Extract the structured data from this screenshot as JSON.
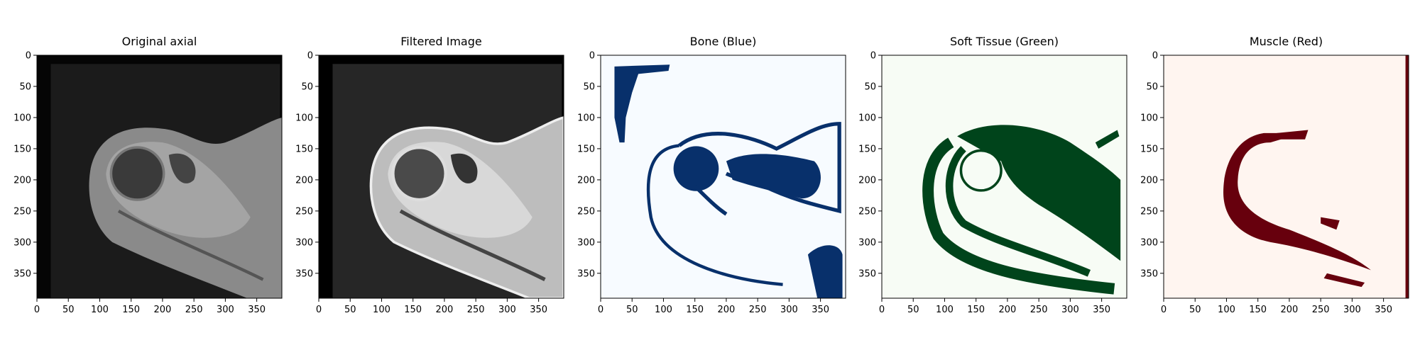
{
  "chart_data": [
    {
      "type": "image",
      "title": "Original axial",
      "xlim": [
        0,
        390
      ],
      "ylim": [
        390,
        0
      ],
      "xticks": [
        0,
        50,
        100,
        150,
        200,
        250,
        300,
        350
      ],
      "yticks": [
        0,
        50,
        100,
        150,
        200,
        250,
        300,
        350
      ]
    },
    {
      "type": "image",
      "title": "Filtered Image",
      "xlim": [
        0,
        390
      ],
      "ylim": [
        390,
        0
      ],
      "xticks": [
        0,
        50,
        100,
        150,
        200,
        250,
        300,
        350
      ],
      "yticks": [
        0,
        50,
        100,
        150,
        200,
        250,
        300,
        350
      ]
    },
    {
      "type": "image",
      "title": "Bone (Blue)",
      "xlim": [
        0,
        390
      ],
      "ylim": [
        390,
        0
      ],
      "xticks": [
        0,
        50,
        100,
        150,
        200,
        250,
        300,
        350
      ],
      "yticks": [
        0,
        50,
        100,
        150,
        200,
        250,
        300,
        350
      ]
    },
    {
      "type": "image",
      "title": "Soft Tissue (Green)",
      "xlim": [
        0,
        390
      ],
      "ylim": [
        390,
        0
      ],
      "xticks": [
        0,
        50,
        100,
        150,
        200,
        250,
        300,
        350
      ],
      "yticks": [
        0,
        50,
        100,
        150,
        200,
        250,
        300,
        350
      ]
    },
    {
      "type": "image",
      "title": "Muscle (Red)",
      "xlim": [
        0,
        390
      ],
      "ylim": [
        390,
        0
      ],
      "xticks": [
        0,
        50,
        100,
        150,
        200,
        250,
        300,
        350
      ],
      "yticks": [
        0,
        50,
        100,
        150,
        200,
        250,
        300,
        350
      ]
    }
  ]
}
